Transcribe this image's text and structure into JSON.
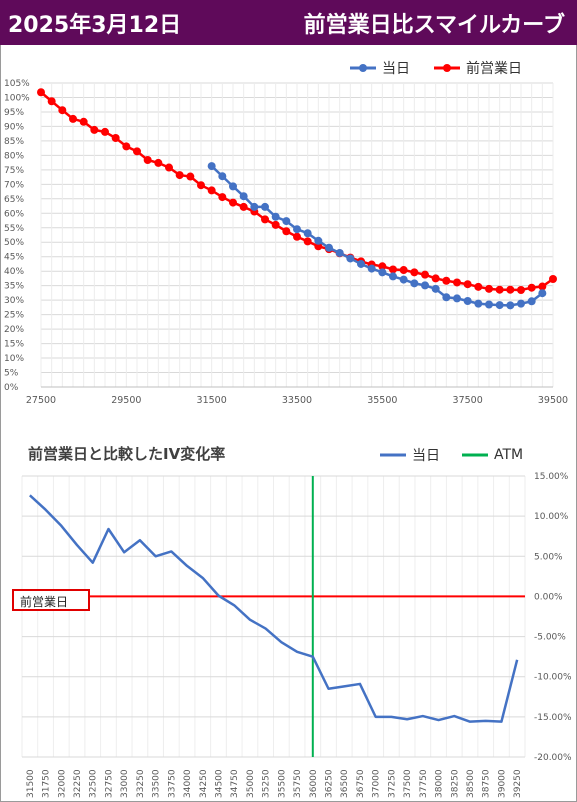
{
  "header": {
    "date": "2025年3月12日",
    "title": "前営業日比スマイルカーブ"
  },
  "colors": {
    "header_bg": "#5f0a5a",
    "today": "#4472c4",
    "prev": "#ff0000",
    "atm": "#00b050",
    "iv_line": "#4472c4"
  },
  "chart_data": [
    {
      "type": "line",
      "title": "",
      "xlim": [
        27500,
        39500
      ],
      "ylim": [
        0,
        105
      ],
      "y_unit": "%",
      "x_ticks": [
        "27500",
        "29500",
        "31500",
        "33500",
        "35500",
        "37500",
        "39500"
      ],
      "y_ticks": [
        "0%",
        "5%",
        "10%",
        "15%",
        "20%",
        "25%",
        "30%",
        "35%",
        "40%",
        "45%",
        "50%",
        "55%",
        "60%",
        "65%",
        "70%",
        "75%",
        "80%",
        "85%",
        "90%",
        "95%",
        "100%",
        "105%"
      ],
      "legend": [
        "当日",
        "前営業日"
      ],
      "series": [
        {
          "name": "当日",
          "x": [
            31500,
            31750,
            32000,
            32250,
            32500,
            32750,
            33000,
            33250,
            33500,
            33750,
            34000,
            34250,
            34500,
            34750,
            35000,
            35250,
            35500,
            35750,
            36000,
            36250,
            36500,
            36750,
            37000,
            37250,
            37500,
            37750,
            38000,
            38250,
            38500,
            38750,
            39000,
            39250
          ],
          "values": [
            76.3,
            72.8,
            69.3,
            65.9,
            62.2,
            62.2,
            58.8,
            57.3,
            54.5,
            53.1,
            50.5,
            48.1,
            46.3,
            44.4,
            42.5,
            40.9,
            39.6,
            38.2,
            37.1,
            35.8,
            35.1,
            33.9,
            31.0,
            30.6,
            29.7,
            28.8,
            28.5,
            28.3,
            28.2,
            28.8,
            29.6,
            32.4
          ]
        },
        {
          "name": "前営業日",
          "x": [
            27500,
            27750,
            28000,
            28250,
            28500,
            28750,
            29000,
            29250,
            29500,
            29750,
            30000,
            30250,
            30500,
            30750,
            31000,
            31250,
            31500,
            31750,
            32000,
            32250,
            32500,
            32750,
            33000,
            33250,
            33500,
            33750,
            34000,
            34250,
            34500,
            34750,
            35000,
            35250,
            35500,
            35750,
            36000,
            36250,
            36500,
            36750,
            37000,
            37250,
            37500,
            37750,
            38000,
            38250,
            38500,
            38750,
            39000,
            39250,
            39500
          ],
          "values": [
            101.8,
            98.7,
            95.6,
            92.6,
            91.6,
            88.8,
            88.1,
            86.0,
            83.1,
            81.4,
            78.4,
            77.4,
            75.8,
            73.2,
            72.7,
            69.7,
            67.9,
            65.6,
            63.7,
            62.2,
            60.6,
            57.9,
            56.0,
            53.8,
            51.9,
            50.3,
            48.6,
            47.6,
            46.2,
            44.7,
            43.4,
            42.3,
            41.7,
            40.6,
            40.4,
            39.6,
            38.8,
            37.5,
            36.7,
            36.1,
            35.5,
            34.6,
            33.9,
            33.6,
            33.6,
            33.5,
            34.3,
            34.7,
            37.3
          ]
        }
      ]
    },
    {
      "type": "line",
      "title": "前営業日と比較したIV変化率",
      "ylim": [
        -20,
        15
      ],
      "y_ticks": [
        "15.00%",
        "10.00%",
        "5.00%",
        "0.00%",
        "-5.00%",
        "-10.00%",
        "-15.00%",
        "-20.00%"
      ],
      "categories": [
        "31500",
        "31750",
        "32000",
        "32250",
        "32500",
        "32750",
        "33000",
        "33250",
        "33500",
        "33750",
        "34000",
        "34250",
        "34500",
        "34750",
        "35000",
        "35250",
        "35500",
        "35750",
        "36000",
        "36250",
        "36500",
        "36750",
        "37000",
        "37250",
        "37500",
        "37750",
        "38000",
        "38250",
        "38500",
        "38750",
        "39000",
        "39250"
      ],
      "legend": [
        "当日",
        "ATM"
      ],
      "atm_category": "36000",
      "baseline_label": "前営業日",
      "series": [
        {
          "name": "当日",
          "values": [
            12.6,
            10.8,
            8.8,
            6.4,
            4.2,
            8.4,
            5.5,
            7.0,
            5.0,
            5.6,
            3.8,
            2.3,
            0.1,
            -1.1,
            -2.9,
            -4.0,
            -5.7,
            -6.9,
            -7.5,
            -11.5,
            -11.2,
            -10.9,
            -15.0,
            -15.0,
            -15.3,
            -14.9,
            -15.4,
            -14.9,
            -15.6,
            -15.5,
            -15.6,
            -7.9
          ]
        }
      ]
    }
  ]
}
